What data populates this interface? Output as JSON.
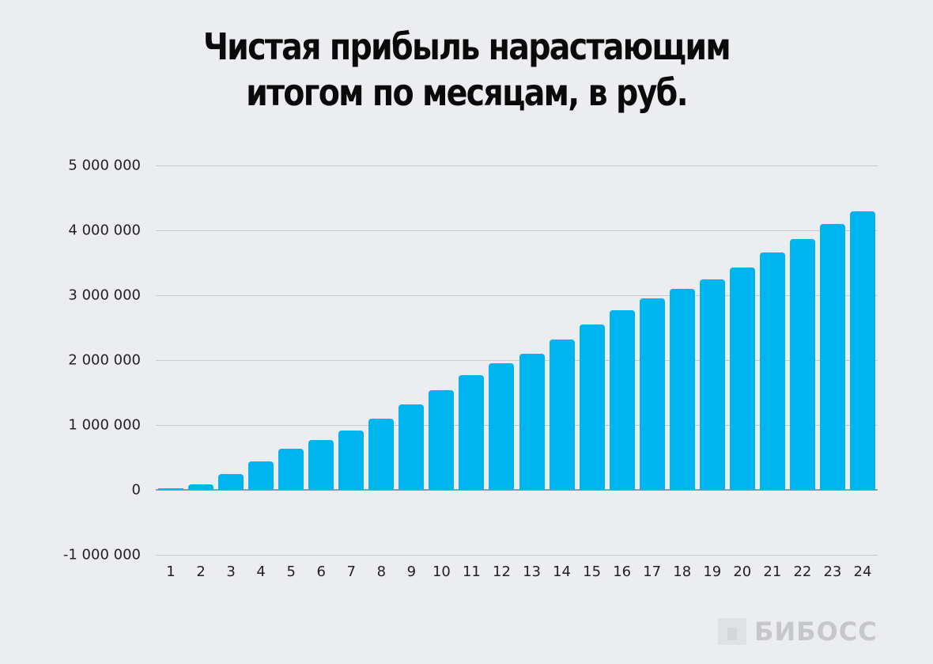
{
  "title": {
    "line1": "Чистая прибыль нарастающим",
    "line2": "итогом по месяцам, в руб."
  },
  "logo": {
    "icon": "bibos-logo-mark",
    "text": "БИБОСС"
  },
  "colors": {
    "bar": "#00b4ef",
    "background": "#ecedf1",
    "grid": "#c9cacf"
  },
  "y_ticks": [
    {
      "label": "5 000 000",
      "value": 5000000
    },
    {
      "label": "4 000 000",
      "value": 4000000
    },
    {
      "label": "3 000 000",
      "value": 3000000
    },
    {
      "label": "2 000 000",
      "value": 2000000
    },
    {
      "label": "1 000 000",
      "value": 1000000
    },
    {
      "label": "0",
      "value": 0
    },
    {
      "label": "-1 000 000",
      "value": -1000000
    }
  ],
  "chart_data": {
    "type": "bar",
    "title": "Чистая прибыль нарастающим итогом по месяцам, в руб.",
    "xlabel": "",
    "ylabel": "",
    "categories": [
      "1",
      "2",
      "3",
      "4",
      "5",
      "6",
      "7",
      "8",
      "9",
      "10",
      "11",
      "12",
      "13",
      "14",
      "15",
      "16",
      "17",
      "18",
      "19",
      "20",
      "21",
      "22",
      "23",
      "24"
    ],
    "values": [
      5000,
      85000,
      240000,
      440000,
      630000,
      770000,
      910000,
      1100000,
      1320000,
      1540000,
      1770000,
      1950000,
      2100000,
      2320000,
      2550000,
      2770000,
      2950000,
      3100000,
      3240000,
      3430000,
      3660000,
      3870000,
      4100000,
      4290000
    ],
    "ylim": [
      -1000000,
      5000000
    ],
    "yticks": [
      -1000000,
      0,
      1000000,
      2000000,
      3000000,
      4000000,
      5000000
    ],
    "grid": true,
    "legend": null
  }
}
